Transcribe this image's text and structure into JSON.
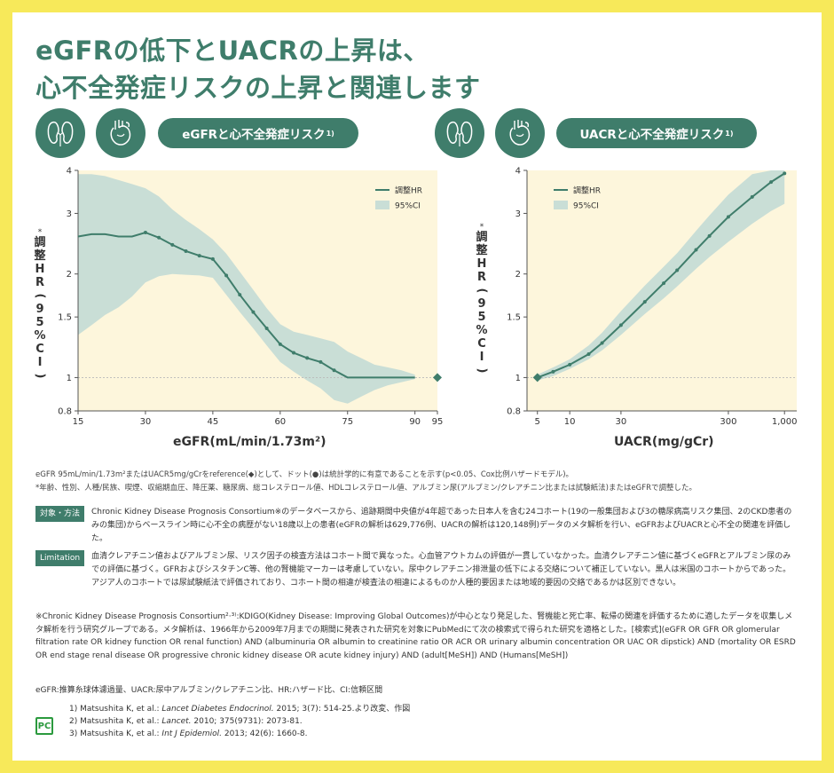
{
  "title": {
    "line1": "eGFRの低下とUACRの上昇は、",
    "line2": "心不全発症リスクの上昇と関連します"
  },
  "icons": [
    "kidney-icon",
    "heart-icon"
  ],
  "colors": {
    "brand_green": "#3f7d6b",
    "line_green": "#3f7d6b",
    "ci_fill": "#c9ded6",
    "plot_bg": "#fdf6dc",
    "frame_yellow": "#f7e95a"
  },
  "chart_left": {
    "pill": "eGFRと心不全発症リスク",
    "pill_sup": "1)"
  },
  "chart_right": {
    "pill": "UACRと心不全発症リスク",
    "pill_sup": "1)"
  },
  "chart_data": [
    {
      "type": "line",
      "title": "eGFRと心不全発症リスク",
      "xlabel": "eGFR(mL/min/1.73m²)",
      "ylabel": "調整HR(95%CI)",
      "ylabel_chars": [
        "*",
        "調",
        "整",
        "H",
        "R",
        "(",
        "9",
        "5",
        "%",
        "C",
        "I",
        ")"
      ],
      "y_scale": "log",
      "xlim": [
        15,
        95
      ],
      "ylim": [
        0.8,
        4
      ],
      "x_ticks": [
        15,
        30,
        45,
        60,
        75,
        90,
        95
      ],
      "y_ticks": [
        0.8,
        1,
        1.5,
        2,
        3,
        4
      ],
      "y_tick_labels": [
        "0.8",
        "1",
        "1.5",
        "2",
        "3",
        "4"
      ],
      "legend": {
        "position": "top-right",
        "line": "調整HR",
        "band": "95%CI"
      },
      "reference": {
        "x": 95,
        "y": 1
      },
      "series": [
        {
          "name": "調整HR",
          "x": [
            15,
            18,
            21,
            24,
            27,
            30,
            33,
            36,
            39,
            42,
            45,
            48,
            51,
            54,
            57,
            60,
            63,
            66,
            69,
            72,
            75,
            78,
            81,
            84,
            87,
            90
          ],
          "y": [
            2.57,
            2.61,
            2.61,
            2.57,
            2.57,
            2.64,
            2.55,
            2.43,
            2.33,
            2.26,
            2.21,
            1.98,
            1.74,
            1.55,
            1.39,
            1.25,
            1.18,
            1.14,
            1.11,
            1.05,
            1.0,
            1.0,
            1.0,
            1.0,
            1.0,
            1.0
          ]
        }
      ],
      "ci_lower": [
        1.33,
        1.42,
        1.52,
        1.6,
        1.72,
        1.89,
        1.97,
        2.0,
        1.99,
        1.98,
        1.95,
        1.74,
        1.55,
        1.39,
        1.24,
        1.11,
        1.04,
        0.98,
        0.93,
        0.86,
        0.84,
        0.88,
        0.92,
        0.95,
        0.97,
        0.99
      ],
      "ci_upper": [
        3.9,
        3.9,
        3.85,
        3.75,
        3.65,
        3.55,
        3.36,
        3.08,
        2.87,
        2.7,
        2.52,
        2.29,
        2.03,
        1.8,
        1.59,
        1.43,
        1.36,
        1.33,
        1.3,
        1.27,
        1.19,
        1.14,
        1.09,
        1.07,
        1.05,
        1.02
      ],
      "significant_dots": [
        30,
        33,
        36,
        39,
        42,
        45,
        48,
        51,
        54,
        57,
        60,
        63,
        66,
        69,
        72
      ]
    },
    {
      "type": "line",
      "title": "UACRと心不全発症リスク",
      "xlabel": "UACR(mg/gCr)",
      "ylabel": "調整HR(95%CI)",
      "ylabel_chars": [
        "*",
        "調",
        "整",
        "H",
        "R",
        "(",
        "9",
        "5",
        "%",
        "C",
        "I",
        ")"
      ],
      "x_scale": "log",
      "y_scale": "log",
      "xlim": [
        4,
        1300
      ],
      "ylim": [
        0.8,
        4
      ],
      "x_ticks": [
        5,
        10,
        30,
        300,
        1000
      ],
      "x_tick_labels": [
        "5",
        "10",
        "30",
        "300",
        "1,000"
      ],
      "y_ticks": [
        0.8,
        1,
        1.5,
        2,
        3,
        4
      ],
      "y_tick_labels": [
        "0.8",
        "1",
        "1.5",
        "2",
        "3",
        "4"
      ],
      "legend": {
        "position": "top-left",
        "line": "調整HR",
        "band": "95%CI"
      },
      "reference": {
        "x": 5,
        "y": 1
      },
      "series": [
        {
          "name": "調整HR",
          "x": [
            5,
            7,
            10,
            15,
            20,
            30,
            50,
            75,
            100,
            150,
            200,
            300,
            500,
            750,
            1000
          ],
          "y": [
            1.0,
            1.04,
            1.09,
            1.17,
            1.26,
            1.42,
            1.66,
            1.88,
            2.05,
            2.35,
            2.58,
            2.93,
            3.35,
            3.7,
            3.92
          ]
        }
      ],
      "ci_lower": [
        0.98,
        1.01,
        1.06,
        1.13,
        1.2,
        1.33,
        1.53,
        1.7,
        1.84,
        2.07,
        2.24,
        2.48,
        2.8,
        3.05,
        3.2
      ],
      "ci_upper": [
        1.02,
        1.07,
        1.13,
        1.24,
        1.35,
        1.56,
        1.85,
        2.1,
        2.3,
        2.67,
        2.96,
        3.4,
        3.9,
        4.0,
        4.0
      ]
    }
  ],
  "footnotes": {
    "note1": "eGFR 95mL/min/1.73m²またはUACR5mg/gCrをreference(◆)として、ドット(●)は統計学的に有意であることを示す(p<0.05、Cox比例ハザードモデル)。",
    "note2": "*年齢、性別、人種/民族、喫煙、収縮期血圧、降圧薬、糖尿病、総コレステロール値、HDLコレステロール値、アルブミン尿(アルブミン/クレアチニン比または試験紙法)またはeGFRで調整した。"
  },
  "methods": {
    "tag": "対象・方法",
    "text": "Chronic Kidney Disease Prognosis Consortium※のデータベースから、追跡期間中央値が4年超であった日本人を含む24コホート(19の一般集団および3の糖尿病高リスク集団、2のCKD患者のみの集団)からベースライン時に心不全の病歴がない18歳以上の患者(eGFRの解析は629,776例、UACRの解析は120,148例)データのメタ解析を行い、eGFRおよびUACRと心不全の関連を評価した。"
  },
  "limitation": {
    "tag": "Limitation",
    "text": "血清クレアチニン値およびアルブミン尿、リスク因子の検査方法はコホート間で異なった。心血管アウトカムの評価が一貫していなかった。血清クレアチニン値に基づくeGFRとアルブミン尿のみでの評価に基づく。GFRおよびシスタチンC等、他の腎機能マーカーは考慮していない。尿中クレアチニン排泄量の低下による交絡について補正していない。黒人は米国のコホートからであった。アジア人のコホートでは尿試験紙法で評価されており、コホート間の相違が検査法の相違によるものか人種的要因または地域的要因の交絡であるかは区別できない。"
  },
  "consortium_note": "※Chronic Kidney Disease Prognosis Consortium²·³⁾:KDIGO(Kidney Disease: Improving Global Outcomes)が中心となり発足した、腎機能と死亡率、転帰の関連を評価するために適したデータを収集しメタ解析を行う研究グループである。メタ解析は、1966年から2009年7月までの期間に発表された研究を対象にPubMedにて次の検索式で得られた研究を適格とした。[検索式](eGFR OR GFR OR glomerular filtration rate OR kidney function OR renal function) AND (albuminuria OR albumin to creatinine ratio OR ACR OR urinary albumin concentration OR UAC OR dipstick) AND (mortality OR ESRD OR end stage renal disease OR progressive chronic kidney disease OR acute kidney injury) AND (adult[MeSH]) AND (Humans[MeSH])",
  "abbreviations": "eGFR:推算糸球体濾過量、UACR:尿中アルブミン/クレアチニン比、HR:ハザード比、CI:信頼区間",
  "references": [
    {
      "num": "1)",
      "authors": "Matsushita K, et al.: ",
      "journal": "Lancet Diabetes Endocrinol.",
      "detail": " 2015; 3(7): 514-25.より改変、作図"
    },
    {
      "num": "2)",
      "authors": "Matsushita K, et al.: ",
      "journal": "Lancet.",
      "detail": " 2010; 375(9731): 2073-81."
    },
    {
      "num": "3)",
      "authors": "Matsushita K, et al.: ",
      "journal": "Int J Epidemiol.",
      "detail": " 2013; 42(6): 1660-8."
    }
  ],
  "logo_text": "PC"
}
